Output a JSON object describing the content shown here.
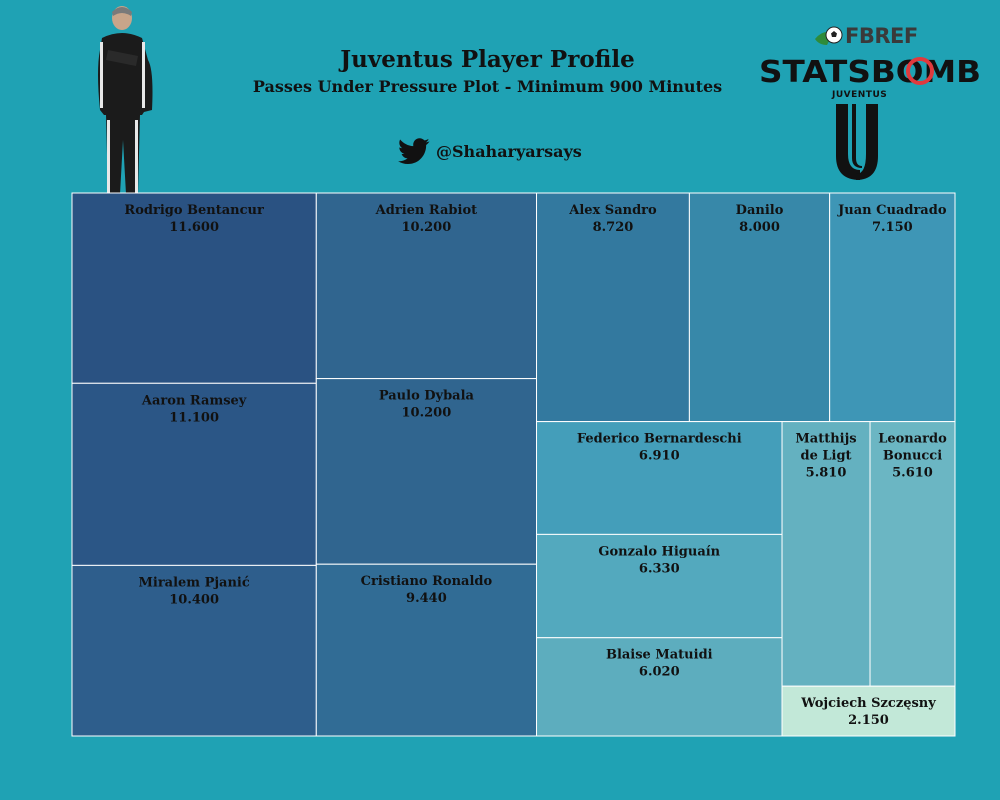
{
  "header": {
    "title": "Juventus Player Profile",
    "subtitle": "Passes Under Pressure Plot - Minimum 900 Minutes",
    "twitter_handle": "@Shaharyarsays"
  },
  "logos": {
    "fbref": "FBREF",
    "statsbomb": "STATSBOMB",
    "club": "JUVENTUS"
  },
  "colors": {
    "background": "#1fa2b4",
    "cell_border": "#ffffff",
    "scale_high": "#2a5282",
    "scale_mid": "#3e96b6",
    "scale_low": "#c2e8d8",
    "statsbomb_red": "#e03a3e",
    "twitter_icon": "#111111"
  },
  "chart_data": {
    "type": "treemap",
    "metric": "Passes Under Pressure",
    "value_format": "3 decimals",
    "items": [
      {
        "name": "Rodrigo Bentancur",
        "value": 11.6,
        "color": "#2a5282"
      },
      {
        "name": "Aaron Ramsey",
        "value": 11.1,
        "color": "#2b5686"
      },
      {
        "name": "Miralem Pjanić",
        "value": 10.4,
        "color": "#2e5e8c"
      },
      {
        "name": "Adrien Rabiot",
        "value": 10.2,
        "color": "#30658f"
      },
      {
        "name": "Paulo Dybala",
        "value": 10.2,
        "color": "#30658f"
      },
      {
        "name": "Cristiano Ronaldo",
        "value": 9.44,
        "color": "#316c95"
      },
      {
        "name": "Alex Sandro",
        "value": 8.72,
        "color": "#33799f"
      },
      {
        "name": "Danilo",
        "value": 8.0,
        "color": "#3788a9"
      },
      {
        "name": "Juan Cuadrado",
        "value": 7.15,
        "color": "#3e96b6"
      },
      {
        "name": "Federico Bernardeschi",
        "value": 6.91,
        "color": "#449eba"
      },
      {
        "name": "Gonzalo Higuaín",
        "value": 6.33,
        "color": "#53a9be"
      },
      {
        "name": "Blaise Matuidi",
        "value": 6.02,
        "color": "#5dadbe"
      },
      {
        "name": "Matthijs de Ligt",
        "value": 5.81,
        "color": "#64b1c0"
      },
      {
        "name": "Leonardo Bonucci",
        "value": 5.61,
        "color": "#6bb6c3"
      },
      {
        "name": "Wojciech Szczęsny",
        "value": 2.15,
        "color": "#c2e8d8"
      }
    ]
  }
}
